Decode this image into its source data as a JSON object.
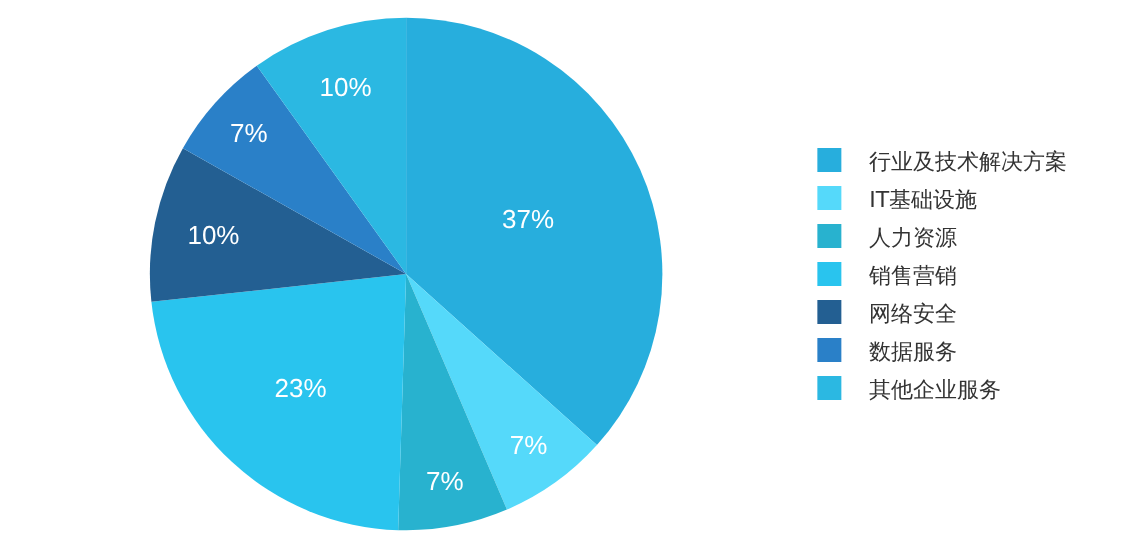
{
  "chart_data": {
    "type": "pie",
    "categories": [
      "行业及技术解决方案",
      "IT基础设施",
      "人力资源",
      "销售营销",
      "网络安全",
      "数据服务",
      "其他企业服务"
    ],
    "values": [
      37,
      7,
      7,
      23,
      10,
      7,
      10
    ],
    "value_labels": [
      "37%",
      "7%",
      "7%",
      "23%",
      "10%",
      "7%",
      "10%"
    ],
    "colors": [
      "#27aedd",
      "#55d9fa",
      "#28b2cf",
      "#29c4ee",
      "#235f92",
      "#2a80c8",
      "#2bb8e2"
    ],
    "legend": "right"
  }
}
